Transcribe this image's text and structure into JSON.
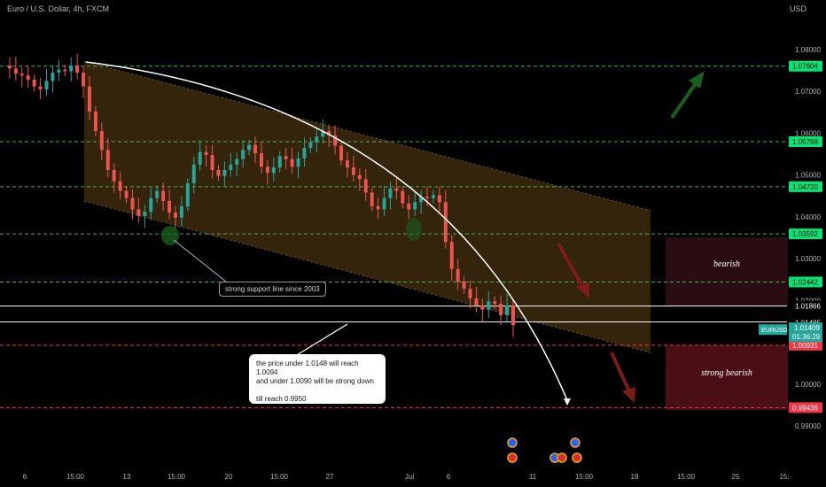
{
  "header": {
    "title": "Euro / U.S. Dollar, 4h, FXCM",
    "currency": "USD"
  },
  "chart_data": {
    "type": "line",
    "symbol": "EURUSD",
    "price_axis": {
      "ticks": [
        1.08,
        1.07,
        1.06,
        1.05,
        1.04,
        1.03,
        1.02,
        1.01,
        1.0,
        0.99
      ],
      "tick_labels": [
        "1.08000",
        "1.07000",
        "1.06000",
        "1.05000",
        "1.04000",
        "1.03000",
        "1.02000",
        "1.01000",
        "1.00000",
        "0.99000"
      ],
      "range": [
        0.985,
        1.087
      ]
    },
    "time_axis": {
      "labels": [
        "6",
        "15:00",
        "13",
        "15:00",
        "20",
        "15:00",
        "27",
        "Jul",
        "6",
        "11",
        "15:00",
        "18",
        "15:00",
        "25",
        "15:"
      ]
    },
    "green_levels": [
      1.07604,
      1.05798,
      1.0472,
      1.03592,
      1.02442
    ],
    "green_level_labels": [
      "1.07604",
      "1.05798",
      "1.04720",
      "1.03592",
      "1.02442"
    ],
    "red_levels": [
      1.00931,
      0.99436
    ],
    "red_level_labels": [
      "1.00931",
      "0.99436"
    ],
    "white_levels": [
      1.01866,
      1.01485
    ],
    "white_level_labels": [
      "1.01866",
      "1.01485"
    ],
    "last_price": {
      "symbol": "EURUSD",
      "value": "1.01409",
      "countdown": "01:36:29",
      "price": 1.01409
    },
    "price_path": [
      1.0762,
      1.0755,
      1.0742,
      1.0738,
      1.0728,
      1.0712,
      1.0705,
      1.0725,
      1.0745,
      1.0752,
      1.0748,
      1.0762,
      1.0745,
      1.0712,
      1.0652,
      1.0605,
      1.056,
      1.0512,
      1.0485,
      1.0462,
      1.0445,
      1.0418,
      1.0402,
      1.0412,
      1.0445,
      1.0462,
      1.0438,
      1.041,
      1.0398,
      1.0425,
      1.048,
      1.0525,
      1.0555,
      1.0548,
      1.0512,
      1.0498,
      1.0512,
      1.0525,
      1.0538,
      1.056,
      1.0572,
      1.0552,
      1.052,
      1.0505,
      1.0518,
      1.0545,
      1.0538,
      1.052,
      1.054,
      1.0565,
      1.0578,
      1.0592,
      1.0605,
      1.0595,
      1.057,
      1.0535,
      1.0518,
      1.05,
      1.049,
      1.0458,
      1.0425,
      1.0418,
      1.0445,
      1.0468,
      1.0462,
      1.0432,
      1.0418,
      1.0435,
      1.0448,
      1.0445,
      1.0452,
      1.0435,
      1.034,
      1.0275,
      1.0245,
      1.0228,
      1.0205,
      1.0188,
      1.0178,
      1.0198,
      1.0192,
      1.0165,
      1.0188,
      1.0141
    ],
    "channel": {
      "upper": [
        [
          0,
          1.0772
        ],
        [
          54,
          1.0415
        ]
      ],
      "lower": [
        [
          0,
          1.0438
        ],
        [
          54,
          1.0075
        ]
      ]
    }
  },
  "annotations": {
    "support_text": "strong support line since 2003",
    "callout_line1": "the price under 1.0148 will reach 1.0094",
    "callout_line2": "and under 1.0090 will be strong down",
    "callout_line3": "till reach 0.9950",
    "bearish_label": "bearish",
    "strong_bearish_label": "strong bearish"
  },
  "colors": {
    "background": "#000000",
    "bull": "#26a69a",
    "bear": "#ef5350",
    "green_level": "#4caf50",
    "red_level": "#f23645",
    "green_badge": "#00e676",
    "red_badge": "#f23645",
    "channel_fill": "#3d2a0d",
    "bearish_zone": "#2a0d12",
    "strong_bearish_zone": "#4a0f14"
  },
  "icons": [
    "down-arrow-icon",
    "up-arrow-icon",
    "event-flag-icon"
  ]
}
